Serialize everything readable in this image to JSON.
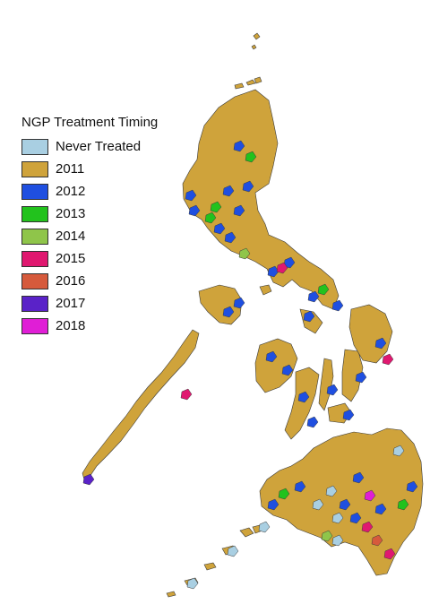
{
  "legend": {
    "title": "NGP Treatment Timing",
    "items": [
      {
        "label": "Never Treated",
        "color": "#a9cfe2"
      },
      {
        "label": "2011",
        "color": "#cfa33b"
      },
      {
        "label": "2012",
        "color": "#1f4fe0"
      },
      {
        "label": "2013",
        "color": "#22c21d"
      },
      {
        "label": "2014",
        "color": "#8fc54a"
      },
      {
        "label": "2015",
        "color": "#e01870"
      },
      {
        "label": "2016",
        "color": "#d65a3c"
      },
      {
        "label": "2017",
        "color": "#5a22c8"
      },
      {
        "label": "2018",
        "color": "#e01ed6"
      }
    ]
  },
  "map": {
    "base_color": "#cfa33b",
    "outline_color": "#3a3a3a"
  }
}
